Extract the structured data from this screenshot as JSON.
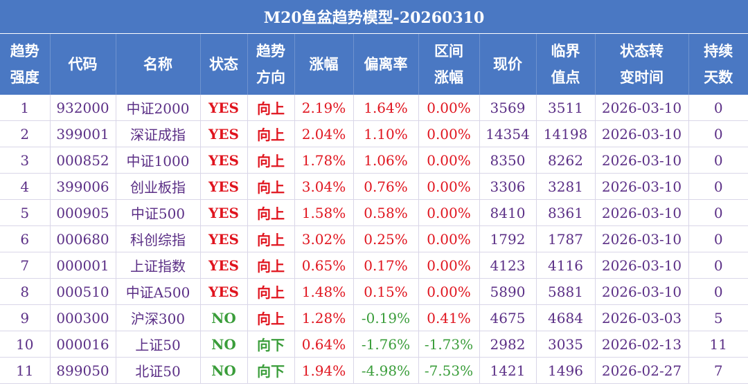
{
  "title": "M20鱼盆趋势模型-20260310",
  "headers": [
    [
      "趋势",
      "强度"
    ],
    [
      "代码"
    ],
    [
      "名称"
    ],
    [
      "状态"
    ],
    [
      "趋势",
      "方向"
    ],
    [
      "涨幅"
    ],
    [
      "偏离率"
    ],
    [
      "区间",
      "涨幅"
    ],
    [
      "现价"
    ],
    [
      "临界",
      "值点"
    ],
    [
      "状态转",
      "变时间"
    ],
    [
      "持续",
      "天数"
    ]
  ],
  "rows": [
    {
      "rank": "1",
      "code": "932000",
      "name": "中证2000",
      "status": "YES",
      "direction": "向上",
      "change": "2.19%",
      "deviation": "1.64%",
      "range_change": "0.00%",
      "price": "3569",
      "critical": "3511",
      "switch_time": "2026-03-10",
      "days": "0"
    },
    {
      "rank": "2",
      "code": "399001",
      "name": "深证成指",
      "status": "YES",
      "direction": "向上",
      "change": "2.04%",
      "deviation": "1.10%",
      "range_change": "0.00%",
      "price": "14354",
      "critical": "14198",
      "switch_time": "2026-03-10",
      "days": "0"
    },
    {
      "rank": "3",
      "code": "000852",
      "name": "中证1000",
      "status": "YES",
      "direction": "向上",
      "change": "1.78%",
      "deviation": "1.06%",
      "range_change": "0.00%",
      "price": "8350",
      "critical": "8262",
      "switch_time": "2026-03-10",
      "days": "0"
    },
    {
      "rank": "4",
      "code": "399006",
      "name": "创业板指",
      "status": "YES",
      "direction": "向上",
      "change": "3.04%",
      "deviation": "0.76%",
      "range_change": "0.00%",
      "price": "3306",
      "critical": "3281",
      "switch_time": "2026-03-10",
      "days": "0"
    },
    {
      "rank": "5",
      "code": "000905",
      "name": "中证500",
      "status": "YES",
      "direction": "向上",
      "change": "1.58%",
      "deviation": "0.58%",
      "range_change": "0.00%",
      "price": "8410",
      "critical": "8361",
      "switch_time": "2026-03-10",
      "days": "0"
    },
    {
      "rank": "6",
      "code": "000680",
      "name": "科创综指",
      "status": "YES",
      "direction": "向上",
      "change": "3.02%",
      "deviation": "0.25%",
      "range_change": "0.00%",
      "price": "1792",
      "critical": "1787",
      "switch_time": "2026-03-10",
      "days": "0"
    },
    {
      "rank": "7",
      "code": "000001",
      "name": "上证指数",
      "status": "YES",
      "direction": "向上",
      "change": "0.65%",
      "deviation": "0.17%",
      "range_change": "0.00%",
      "price": "4123",
      "critical": "4116",
      "switch_time": "2026-03-10",
      "days": "0"
    },
    {
      "rank": "8",
      "code": "000510",
      "name": "中证A500",
      "status": "YES",
      "direction": "向上",
      "change": "1.48%",
      "deviation": "0.15%",
      "range_change": "0.00%",
      "price": "5890",
      "critical": "5881",
      "switch_time": "2026-03-10",
      "days": "0"
    },
    {
      "rank": "9",
      "code": "000300",
      "name": "沪深300",
      "status": "NO",
      "direction": "向上",
      "change": "1.28%",
      "deviation": "-0.19%",
      "range_change": "0.41%",
      "price": "4675",
      "critical": "4684",
      "switch_time": "2026-03-03",
      "days": "5"
    },
    {
      "rank": "10",
      "code": "000016",
      "name": "上证50",
      "status": "NO",
      "direction": "向下",
      "change": "0.64%",
      "deviation": "-1.76%",
      "range_change": "-1.73%",
      "price": "2982",
      "critical": "3035",
      "switch_time": "2026-02-13",
      "days": "11"
    },
    {
      "rank": "11",
      "code": "899050",
      "name": "北证50",
      "status": "NO",
      "direction": "向下",
      "change": "1.94%",
      "deviation": "-4.98%",
      "range_change": "-7.53%",
      "price": "1421",
      "critical": "1496",
      "switch_time": "2026-02-27",
      "days": "7"
    }
  ],
  "colors": {
    "header_bg": "#4a78c3",
    "header_text": "#ffffff",
    "positive": "#e0141e",
    "negative": "#3a9d3a",
    "neutral_text": "#5b2f86"
  }
}
